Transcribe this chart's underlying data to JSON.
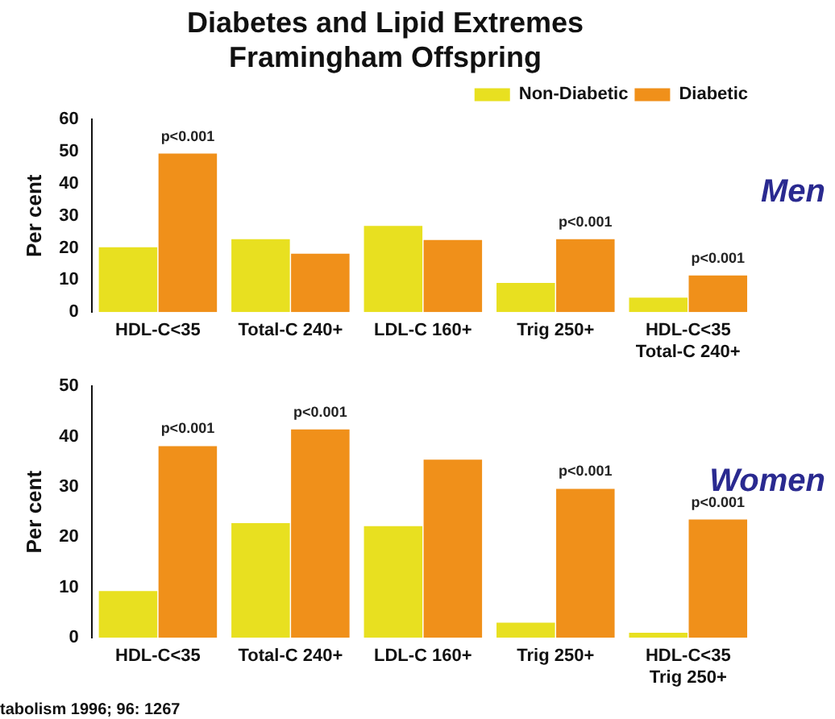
{
  "chart_data": [
    {
      "type": "bar",
      "title": "Diabetes and Lipid Extremes\nFramingham Offspring",
      "ylabel": "Per cent",
      "categories": [
        "HDL-C<35",
        "Total-C 240+",
        "LDL-C 160+",
        "Trig 250+",
        "HDL-C<35\nTotal-C 240+"
      ],
      "series": [
        {
          "name": "Non-Diabetic",
          "color": "#e8e020",
          "values": [
            20.2,
            22.7,
            26.9,
            9.1,
            4.5
          ]
        },
        {
          "name": "Diabetic",
          "color": "#f0901a",
          "values": [
            49.4,
            18.2,
            22.5,
            22.7,
            11.4
          ]
        }
      ],
      "ylim": [
        0,
        60
      ],
      "yticks": [
        0,
        10,
        20,
        30,
        40,
        50,
        60
      ],
      "grid": false,
      "legend": "top right",
      "annotations": [
        "Men",
        {
          "text": "p<0.001",
          "x": "HDL-C<35",
          "y": 49.4
        },
        {
          "text": "p<0.001",
          "x": "Trig 250+",
          "y": 22.7
        },
        {
          "text": "p<0.001",
          "x": "HDL-C<35\nTotal-C 240+",
          "y": 11.4
        }
      ]
    },
    {
      "type": "bar",
      "ylabel": "Per cent",
      "categories": [
        "HDL-C<35",
        "Total-C 240+",
        "LDL-C 160+",
        "Trig 250+",
        "HDL-C<35\nTrig 250+"
      ],
      "series": [
        {
          "color": "#e8e020",
          "values": [
            9.3,
            22.8,
            22.2,
            3.0,
            1.0
          ]
        },
        {
          "color": "#f0901a",
          "values": [
            38.1,
            41.4,
            35.4,
            29.6,
            23.5
          ]
        }
      ],
      "ylim": [
        0,
        50
      ],
      "yticks": [
        0,
        10,
        20,
        30,
        40,
        50
      ],
      "grid": false,
      "legend": false,
      "annotations": [
        "Women",
        "tabolism 1996; 96: 1267",
        {
          "text": "p<0.001",
          "x": "HDL-C<35",
          "y": 38.1
        },
        {
          "text": "p<0.001",
          "x": "Total-C 240+",
          "y": 41.4
        },
        {
          "text": "p<0.001",
          "x": "Trig 250+",
          "y": 29.6
        },
        {
          "text": "p<0.001",
          "x": "HDL-C<35\nTrig 250+",
          "y": 23.5
        }
      ]
    }
  ]
}
